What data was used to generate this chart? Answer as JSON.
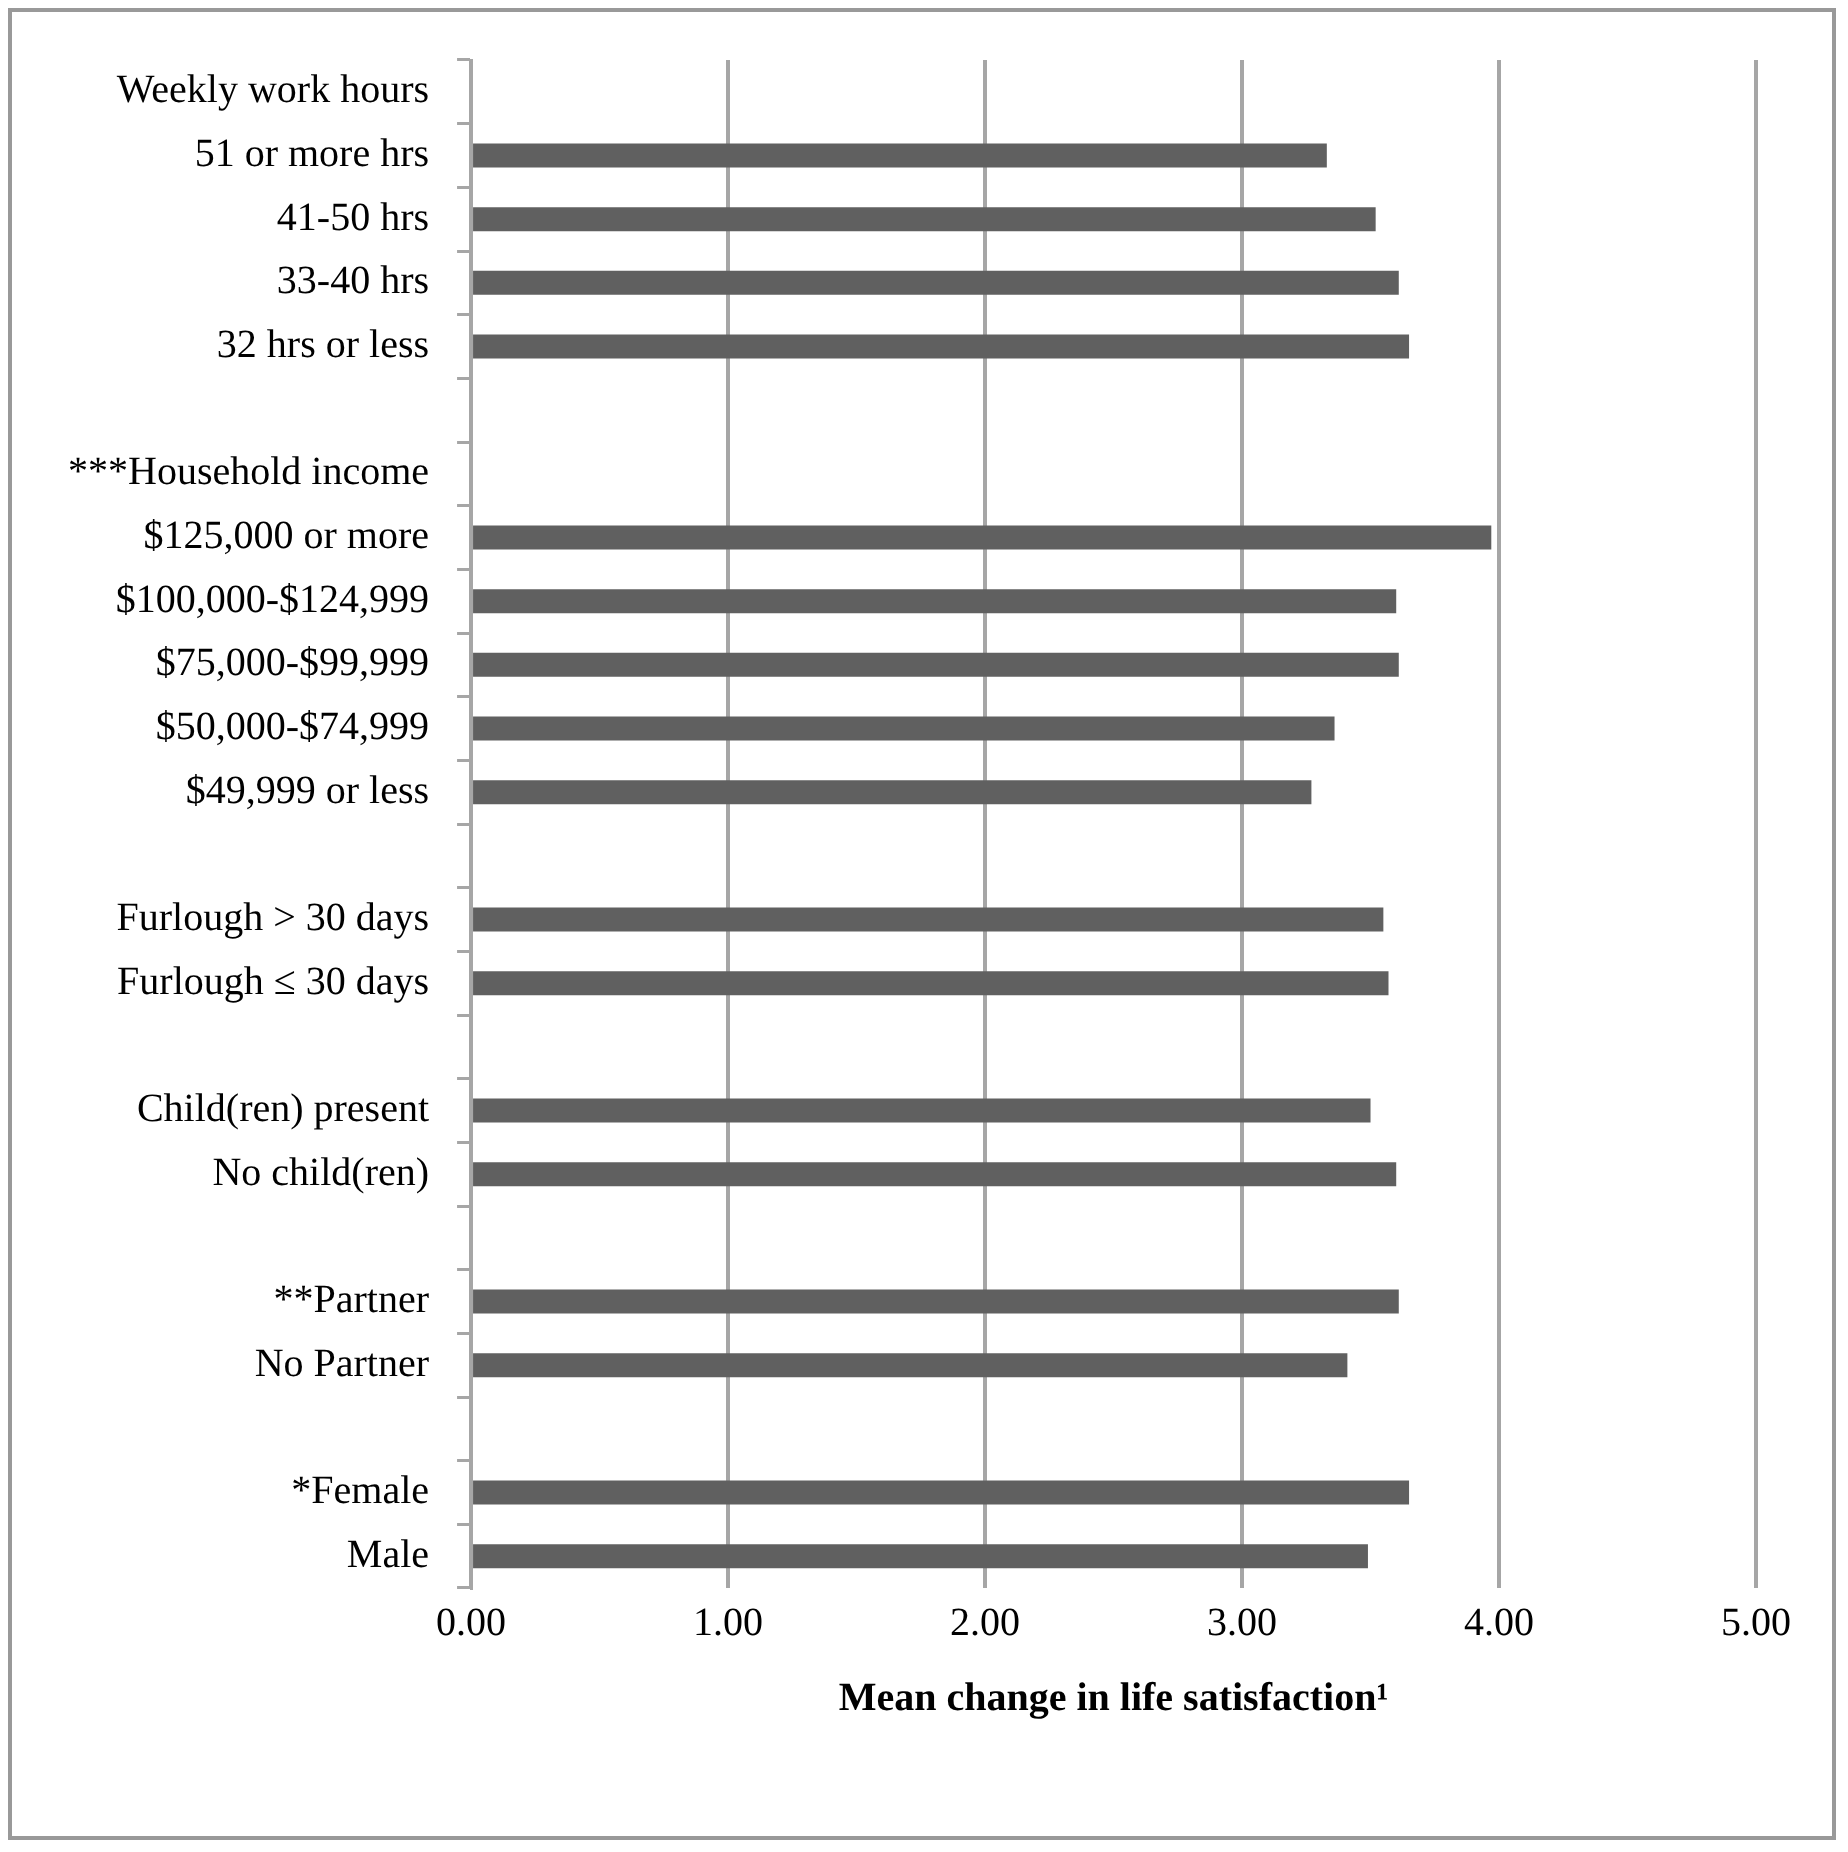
{
  "chart_data": {
    "type": "bar",
    "orientation": "horizontal",
    "xlabel": "Mean change in life satisfaction¹",
    "categories": [
      "Weekly work hours",
      "51 or more hrs",
      "41-50 hrs",
      "33-40 hrs",
      "32 hrs or less",
      null,
      "***Household income",
      "$125,000 or more",
      "$100,000-$124,999",
      "$75,000-$99,999",
      "$50,000-$74,999",
      "$49,999 or less",
      null,
      "Furlough > 30 days",
      "Furlough ≤ 30 days",
      null,
      "Child(ren) present",
      "No child(ren)",
      null,
      "**Partner",
      "No Partner",
      null,
      "*Female",
      "Male"
    ],
    "values": [
      null,
      3.33,
      3.52,
      3.61,
      3.65,
      null,
      null,
      3.97,
      3.6,
      3.61,
      3.36,
      3.27,
      null,
      3.55,
      3.57,
      null,
      3.5,
      3.6,
      null,
      3.61,
      3.41,
      null,
      3.65,
      3.49
    ],
    "color": "#606060",
    "xlim": [
      0,
      5
    ],
    "xticks": [
      {
        "value": 0,
        "label": "0.00"
      },
      {
        "value": 1,
        "label": "1.00"
      },
      {
        "value": 2,
        "label": "2.00"
      },
      {
        "value": 3,
        "label": "3.00"
      },
      {
        "value": 4,
        "label": "4.00"
      },
      {
        "value": 5,
        "label": "5.00"
      }
    ],
    "grid": "x",
    "legend": false
  }
}
